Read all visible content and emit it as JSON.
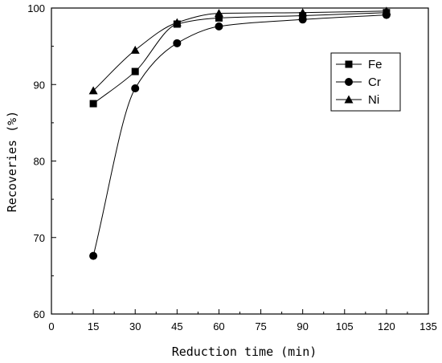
{
  "chart_data": {
    "type": "line",
    "title": "",
    "xlabel": "Reduction time (min)",
    "ylabel": "Recoveries (%)",
    "xlim": [
      0,
      135
    ],
    "ylim": [
      60,
      100
    ],
    "xticks": [
      "0",
      "15",
      "30",
      "45",
      "60",
      "75",
      "90",
      "105",
      "120",
      "135"
    ],
    "yticks": [
      "60",
      "70",
      "80",
      "90",
      "100"
    ],
    "x": [
      15,
      30,
      45,
      60,
      90,
      120
    ],
    "series": [
      {
        "name": "Fe",
        "marker": "square",
        "values": [
          87.5,
          91.7,
          97.9,
          98.7,
          99.0,
          99.4
        ]
      },
      {
        "name": "Cr",
        "marker": "circle",
        "values": [
          67.6,
          89.5,
          95.4,
          97.6,
          98.5,
          99.1
        ]
      },
      {
        "name": "Ni",
        "marker": "triangle",
        "values": [
          89.2,
          94.5,
          98.1,
          99.3,
          99.4,
          99.6
        ]
      }
    ],
    "legend_position": "top-right",
    "grid": false,
    "color": "#000000"
  }
}
